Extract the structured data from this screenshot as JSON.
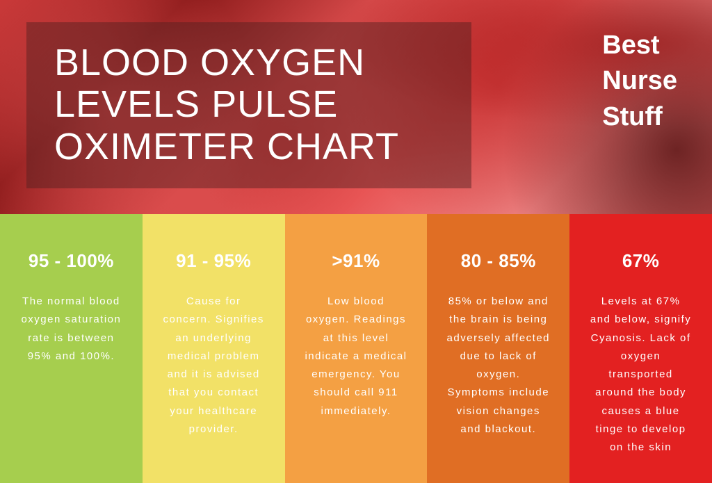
{
  "header": {
    "title": "BLOOD OXYGEN LEVELS PULSE OXIMETER CHART",
    "brand_line1": "Best",
    "brand_line2": "Nurse",
    "brand_line3": "Stuff",
    "bg_gradient": "linear-gradient(135deg, #c93838 0%, #8b1a1a 20%, #d44848 40%, #e85555 60%, #f08888 80%, #d66060 100%)",
    "title_color": "#ffffff",
    "title_fontsize": 54,
    "title_fontweight": 300,
    "brand_fontsize": 38,
    "brand_fontweight": 700
  },
  "chart": {
    "type": "infographic",
    "range_fontsize": 26,
    "range_fontweight": 700,
    "desc_fontsize": 15,
    "text_color": "#ffffff",
    "columns": [
      {
        "range": "95 - 100%",
        "description": "The normal blood oxygen saturation rate is between 95% and 100%.",
        "bg_color": "#a6ce4e"
      },
      {
        "range": "91 - 95%",
        "description": "Cause for concern. Signifies an underlying medical problem and it is advised that you contact your healthcare provider.",
        "bg_color": "#f2e167"
      },
      {
        "range": ">91%",
        "description": "Low blood oxygen. Readings at this level indicate a medical emergency. You should call 911 immediately.",
        "bg_color": "#f4a043"
      },
      {
        "range": "80 - 85%",
        "description": "85% or below and the brain is being adversely affected due to lack of oxygen. Symptoms include vision changes and blackout.",
        "bg_color": "#e06e24"
      },
      {
        "range": "67%",
        "description": "Levels at 67% and below, signify Cyanosis. Lack of oxygen transported around the body causes a blue tinge to develop on the skin",
        "bg_color": "#e32121"
      }
    ]
  }
}
